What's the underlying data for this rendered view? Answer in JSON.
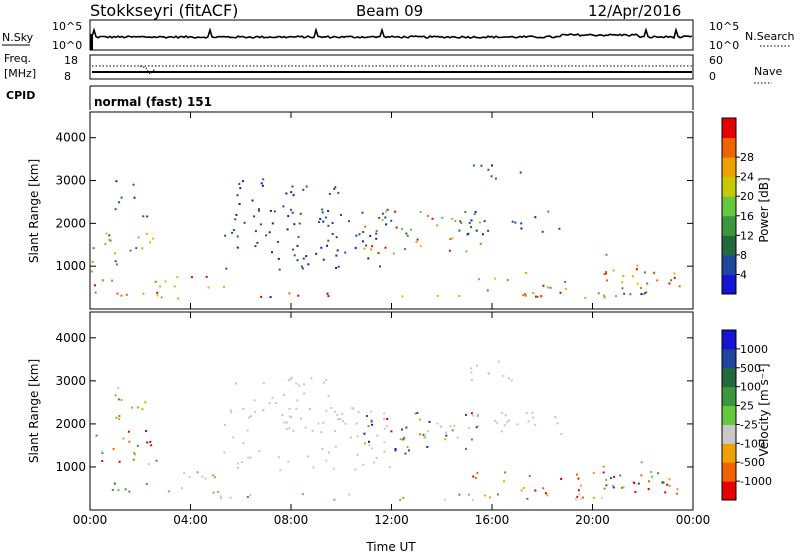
{
  "header": {
    "station": "Stokkseyri (fitACF)",
    "beam": "Beam 09",
    "date": "12/Apr/2016"
  },
  "top_panels": {
    "nsky_label": "N.Sky",
    "nsky_ticks": [
      "10^5",
      "10^0"
    ],
    "nsearch_label": "N.Search",
    "nsearch_ticks": [
      "10^5",
      "10^0"
    ],
    "freq_label_1": "Freq.",
    "freq_label_2": "[MHz]",
    "freq_ticks": [
      "18",
      "8"
    ],
    "nave_label": "Nave",
    "nave_ticks": [
      "60",
      "0"
    ],
    "cpid_label": "CPID",
    "cpid_value": "normal (fast) 151"
  },
  "colors": {
    "power": [
      "#1414d2",
      "#1e46a0",
      "#23693c",
      "#3c963c",
      "#64c83c",
      "#c8c800",
      "#f0a000",
      "#f06400",
      "#e60000"
    ],
    "velocity": [
      "#e60000",
      "#f06400",
      "#f0a000",
      "#c8c8c8",
      "#64c83c",
      "#3c963c",
      "#23693c",
      "#1e46a0",
      "#1414d2"
    ]
  },
  "chart_data": [
    {
      "type": "heatmap",
      "quantity": "power",
      "ylabel": "Slant Range [km]",
      "xlabel": "",
      "y_ticks": [
        "1000",
        "2000",
        "3000",
        "4000"
      ],
      "ylim": [
        0,
        4600
      ],
      "x_ticks": [
        "00:00",
        "04:00",
        "08:00",
        "12:00",
        "16:00",
        "20:00",
        "00:00"
      ],
      "colorbar_label": "Power [dB]",
      "colorbar_ticks": [
        "4",
        "8",
        "12",
        "16",
        "20",
        "24",
        "28"
      ],
      "colorbar_range": [
        0,
        30
      ]
    },
    {
      "type": "heatmap",
      "quantity": "velocity",
      "ylabel": "Slant Range [km]",
      "xlabel": "Time UT",
      "y_ticks": [
        "1000",
        "2000",
        "3000",
        "4000"
      ],
      "ylim": [
        0,
        4600
      ],
      "x_ticks": [
        "00:00",
        "04:00",
        "08:00",
        "12:00",
        "16:00",
        "20:00",
        "00:00"
      ],
      "colorbar_label": "Velocity [m s⁻¹]",
      "colorbar_ticks": [
        "1000",
        "500",
        "100",
        "25",
        "-25",
        "-100",
        "-500",
        "-1000"
      ],
      "colorbar_range": [
        -1000,
        1000
      ]
    }
  ]
}
